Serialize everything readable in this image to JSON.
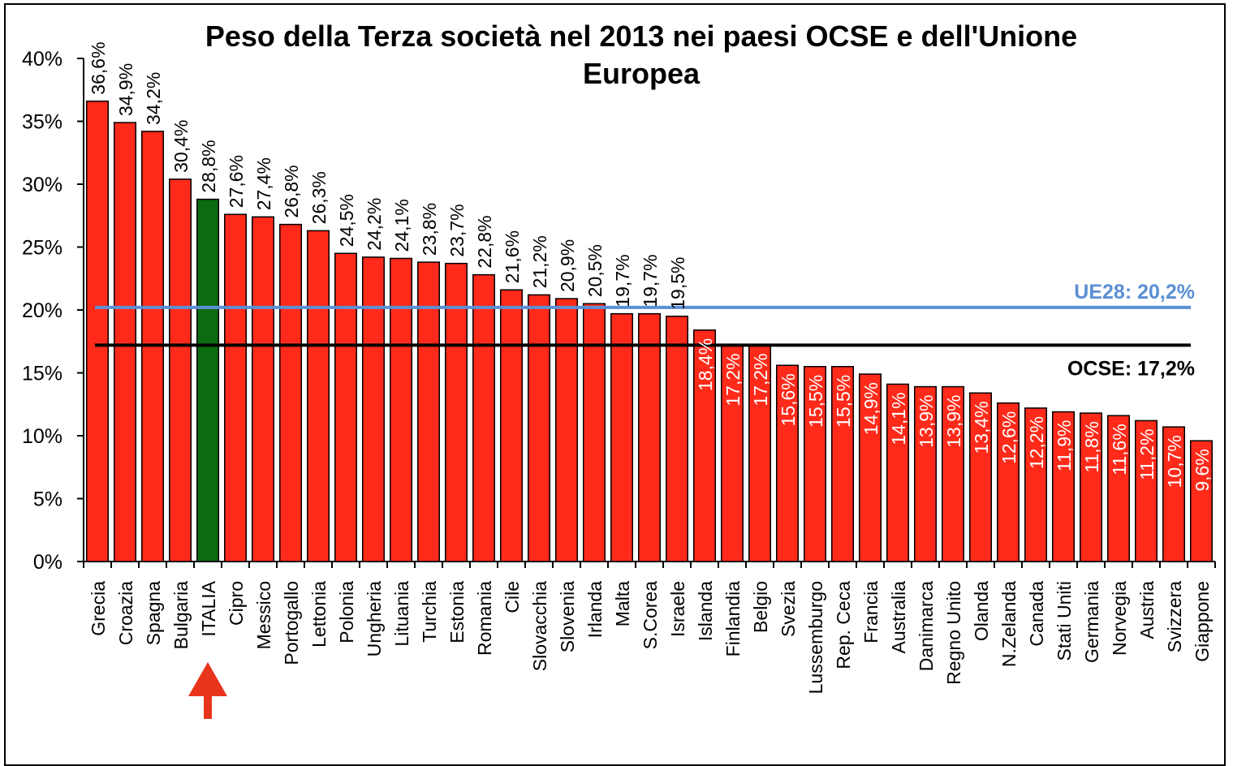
{
  "chart_data": {
    "type": "bar",
    "title": "Peso della Terza società nel 2013 nei paesi OCSE e dell'Unione Europea",
    "categories": [
      "Grecia",
      "Croazia",
      "Spagna",
      "Bulgaria",
      "ITALIA",
      "Cipro",
      "Messico",
      "Portogallo",
      "Lettonia",
      "Polonia",
      "Ungheria",
      "Lituania",
      "Turchia",
      "Estonia",
      "Romania",
      "Cile",
      "Slovacchia",
      "Slovenia",
      "Irlanda",
      "Malta",
      "S.Corea",
      "Israele",
      "Islanda",
      "Finlandia",
      "Belgio",
      "Svezia",
      "Lussemburgo",
      "Rep. Ceca",
      "Francia",
      "Australia",
      "Danimarca",
      "Regno Unito",
      "Olanda",
      "N.Zelanda",
      "Canada",
      "Stati Uniti",
      "Germania",
      "Norvegia",
      "Austria",
      "Svizzera",
      "Giappone"
    ],
    "values": [
      36.6,
      34.9,
      34.2,
      30.4,
      28.8,
      27.6,
      27.4,
      26.8,
      26.3,
      24.5,
      24.2,
      24.1,
      23.8,
      23.7,
      22.8,
      21.6,
      21.2,
      20.9,
      20.5,
      19.7,
      19.7,
      19.5,
      18.4,
      17.2,
      17.2,
      15.6,
      15.5,
      15.5,
      14.9,
      14.1,
      13.9,
      13.9,
      13.4,
      12.6,
      12.2,
      11.9,
      11.8,
      11.6,
      11.2,
      10.7,
      9.6
    ],
    "data_labels": [
      "36,6%",
      "34,9%",
      "34,2%",
      "30,4%",
      "28,8%",
      "27,6%",
      "27,4%",
      "26,8%",
      "26,3%",
      "24,5%",
      "24,2%",
      "24,1%",
      "23,8%",
      "23,7%",
      "22,8%",
      "21,6%",
      "21,2%",
      "20,9%",
      "20,5%",
      "19,7%",
      "19,7%",
      "19,5%",
      "18,4%",
      "17,2%",
      "17,2%",
      "15,6%",
      "15,5%",
      "15,5%",
      "14,9%",
      "14,1%",
      "13,9%",
      "13,9%",
      "13,4%",
      "12,6%",
      "12,2%",
      "11,9%",
      "11,8%",
      "11,6%",
      "11,2%",
      "10,7%",
      "9,6%"
    ],
    "highlight_category": "ITALIA",
    "ylim": [
      0,
      40
    ],
    "yticks": [
      "0%",
      "5%",
      "10%",
      "15%",
      "20%",
      "25%",
      "30%",
      "35%",
      "40%"
    ],
    "reference_lines": [
      {
        "label": "UE28: 20,2%",
        "value": 20.2,
        "color": "#5b8fd4"
      },
      {
        "label": "OCSE: 17,2%",
        "value": 17.2,
        "color": "#000000"
      }
    ],
    "colors": {
      "bar": "#ff2a1a",
      "highlight": "#0b6b10",
      "arrow": "#e8341c"
    },
    "grid": false
  }
}
